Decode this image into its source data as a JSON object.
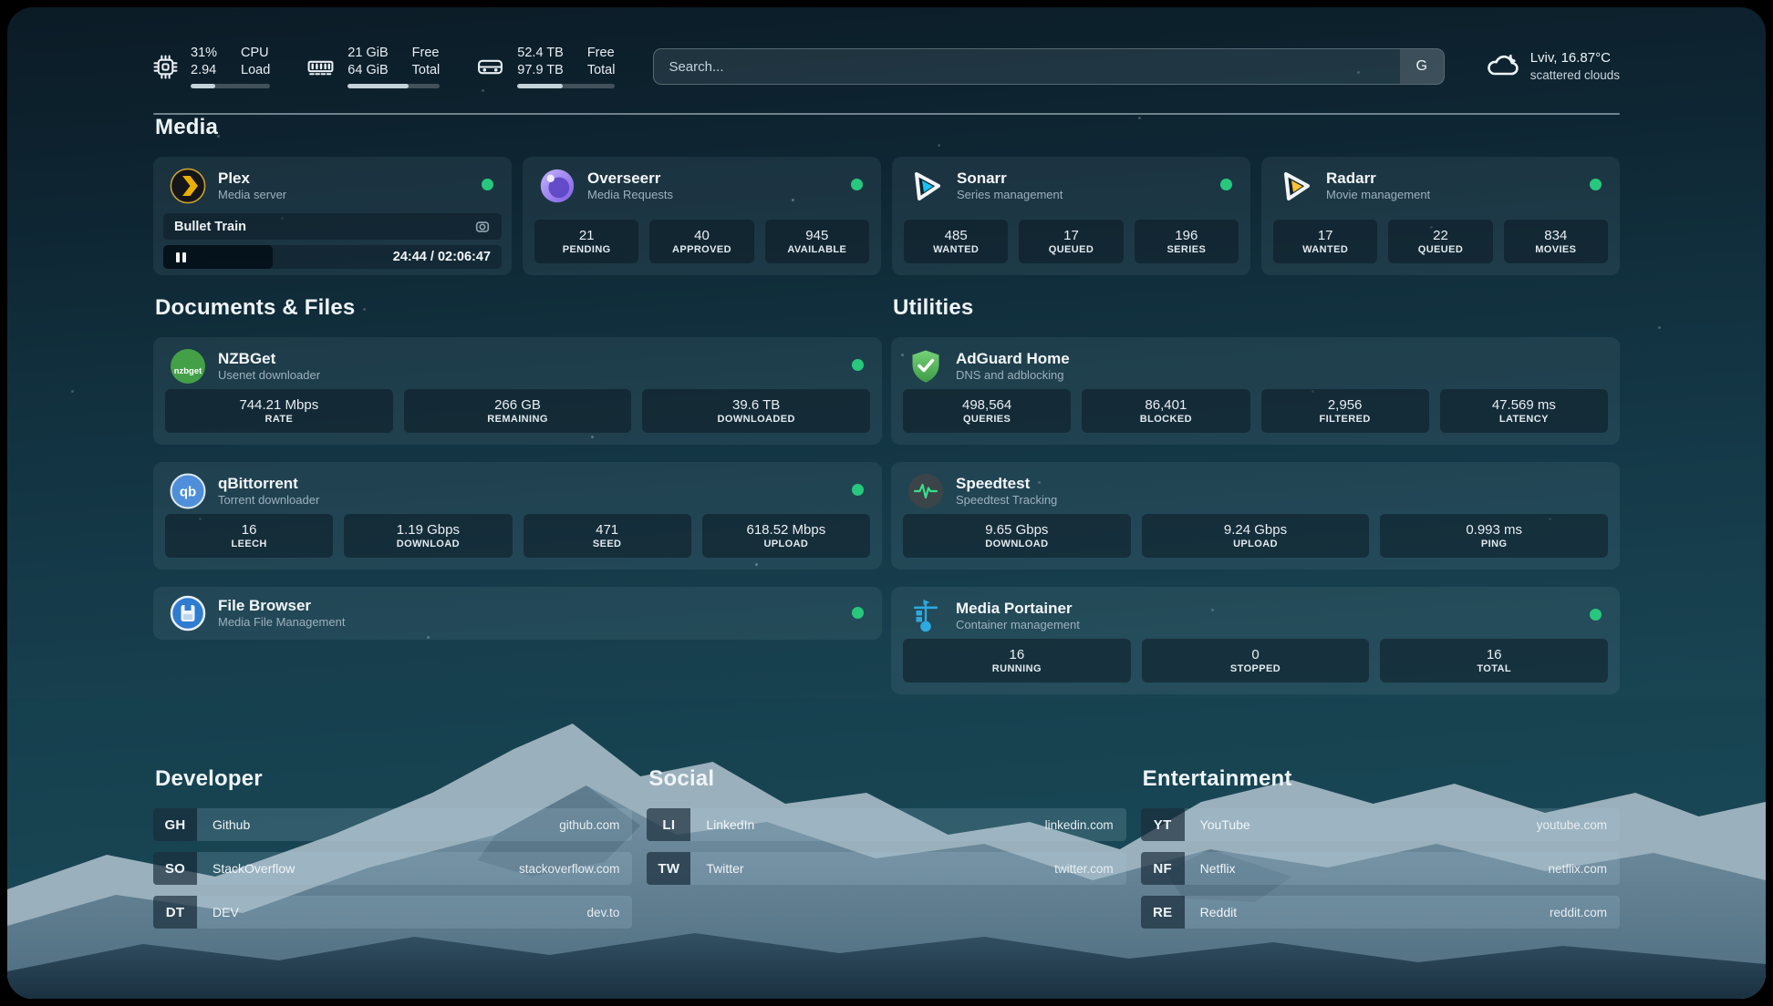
{
  "topbar": {
    "cpu": {
      "percent": "31%",
      "load": "2.94",
      "label_top": "CPU",
      "label_bottom": "Load",
      "progress": 31
    },
    "memory": {
      "free": "21 GiB",
      "total": "64 GiB",
      "label_top": "Free",
      "label_bottom": "Total",
      "progress": 66
    },
    "disk": {
      "free": "52.4 TB",
      "total": "97.9 TB",
      "label_top": "Free",
      "label_bottom": "Total",
      "progress": 46
    },
    "search": {
      "placeholder": "Search...",
      "engine": "G"
    },
    "weather": {
      "location": "Lviv, 16.87°C",
      "condition": "scattered clouds"
    }
  },
  "media": {
    "title": "Media",
    "plex": {
      "name": "Plex",
      "subtitle": "Media server",
      "now_playing": "Bullet Train",
      "time": "24:44 / 02:06:47"
    },
    "overseerr": {
      "name": "Overseerr",
      "subtitle": "Media Requests",
      "stats": [
        {
          "value": "21",
          "label": "PENDING"
        },
        {
          "value": "40",
          "label": "APPROVED"
        },
        {
          "value": "945",
          "label": "AVAILABLE"
        }
      ]
    },
    "sonarr": {
      "name": "Sonarr",
      "subtitle": "Series management",
      "stats": [
        {
          "value": "485",
          "label": "WANTED"
        },
        {
          "value": "17",
          "label": "QUEUED"
        },
        {
          "value": "196",
          "label": "SERIES"
        }
      ]
    },
    "radarr": {
      "name": "Radarr",
      "subtitle": "Movie management",
      "stats": [
        {
          "value": "17",
          "label": "WANTED"
        },
        {
          "value": "22",
          "label": "QUEUED"
        },
        {
          "value": "834",
          "label": "MOVIES"
        }
      ]
    }
  },
  "documents": {
    "title": "Documents & Files",
    "nzbget": {
      "name": "NZBGet",
      "subtitle": "Usenet downloader",
      "stats": [
        {
          "value": "744.21 Mbps",
          "label": "RATE"
        },
        {
          "value": "266 GB",
          "label": "REMAINING"
        },
        {
          "value": "39.6 TB",
          "label": "DOWNLOADED"
        }
      ]
    },
    "qbittorrent": {
      "name": "qBittorrent",
      "subtitle": "Torrent downloader",
      "stats": [
        {
          "value": "16",
          "label": "LEECH"
        },
        {
          "value": "1.19 Gbps",
          "label": "DOWNLOAD"
        },
        {
          "value": "471",
          "label": "SEED"
        },
        {
          "value": "618.52 Mbps",
          "label": "UPLOAD"
        }
      ]
    },
    "filebrowser": {
      "name": "File Browser",
      "subtitle": "Media File Management"
    }
  },
  "utilities": {
    "title": "Utilities",
    "adguard": {
      "name": "AdGuard Home",
      "subtitle": "DNS and adblocking",
      "stats": [
        {
          "value": "498,564",
          "label": "QUERIES"
        },
        {
          "value": "86,401",
          "label": "BLOCKED"
        },
        {
          "value": "2,956",
          "label": "FILTERED"
        },
        {
          "value": "47.569 ms",
          "label": "LATENCY"
        }
      ]
    },
    "speedtest": {
      "name": "Speedtest",
      "subtitle": "Speedtest Tracking",
      "stats": [
        {
          "value": "9.65 Gbps",
          "label": "DOWNLOAD"
        },
        {
          "value": "9.24 Gbps",
          "label": "UPLOAD"
        },
        {
          "value": "0.993 ms",
          "label": "PING"
        }
      ]
    },
    "portainer": {
      "name": "Media Portainer",
      "subtitle": "Container management",
      "stats": [
        {
          "value": "16",
          "label": "RUNNING"
        },
        {
          "value": "0",
          "label": "STOPPED"
        },
        {
          "value": "16",
          "label": "TOTAL"
        }
      ]
    }
  },
  "bookmarks": {
    "developer": {
      "title": "Developer",
      "items": [
        {
          "abbr": "GH",
          "name": "Github",
          "url": "github.com"
        },
        {
          "abbr": "SO",
          "name": "StackOverflow",
          "url": "stackoverflow.com"
        },
        {
          "abbr": "DT",
          "name": "DEV",
          "url": "dev.to"
        }
      ]
    },
    "social": {
      "title": "Social",
      "items": [
        {
          "abbr": "LI",
          "name": "LinkedIn",
          "url": "linkedin.com"
        },
        {
          "abbr": "TW",
          "name": "Twitter",
          "url": "twitter.com"
        }
      ]
    },
    "entertainment": {
      "title": "Entertainment",
      "items": [
        {
          "abbr": "YT",
          "name": "YouTube",
          "url": "youtube.com"
        },
        {
          "abbr": "NF",
          "name": "Netflix",
          "url": "netflix.com"
        },
        {
          "abbr": "RE",
          "name": "Reddit",
          "url": "reddit.com"
        }
      ]
    }
  },
  "colors": {
    "status_online": "#27c87d",
    "accent_plex": "#ebaf00",
    "accent_sonarr": "#15c2f2",
    "accent_radarr": "#ffc230"
  }
}
